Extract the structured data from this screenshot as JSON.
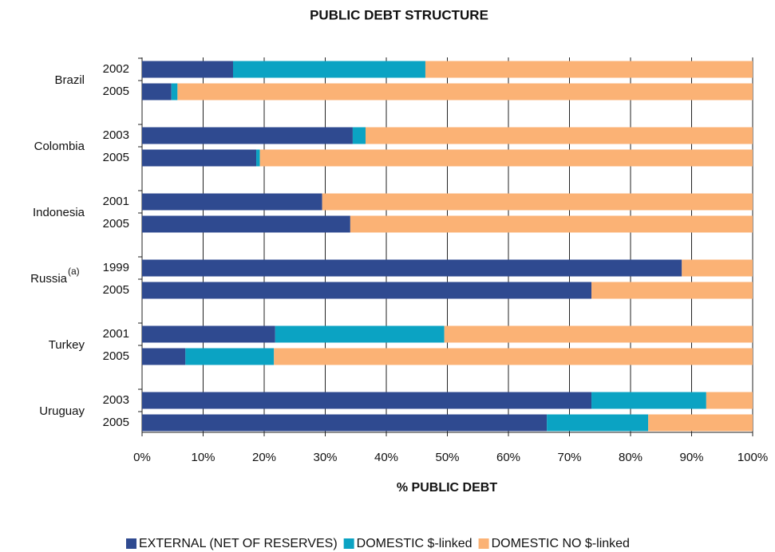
{
  "chart_data": {
    "type": "stacked_barh",
    "title": "PUBLIC DEBT STRUCTURE",
    "x_label": "% PUBLIC DEBT",
    "groups": [
      {
        "label": "Brazil",
        "categories": [
          "2002",
          "2005"
        ]
      },
      {
        "label": "Colombia",
        "categories": [
          "2003",
          "2005"
        ]
      },
      {
        "label": "Indonesia",
        "categories": [
          "2001",
          "2005"
        ]
      },
      {
        "label": "Russia",
        "note": "(a)",
        "categories": [
          "1999",
          "2005"
        ]
      },
      {
        "label": "Turkey",
        "categories": [
          "2001",
          "2005"
        ]
      },
      {
        "label": "Uruguay",
        "categories": [
          "2003",
          "2005"
        ]
      }
    ],
    "series": [
      {
        "name": "EXTERNAL (NET OF RESERVES)",
        "color": "#2f4a90",
        "values": [
          14.9,
          4.8,
          34.5,
          18.7,
          29.5,
          34.1,
          88.4,
          73.6,
          21.8,
          7.1,
          73.6,
          66.3
        ]
      },
      {
        "name": "DOMESTIC $-linked",
        "color": "#0ba3c3",
        "values": [
          31.5,
          1.0,
          2.1,
          0.6,
          0,
          0,
          0,
          0,
          27.7,
          14.5,
          18.8,
          16.6
        ]
      },
      {
        "name": "DOMESTIC NO $-linked",
        "color": "#fbb275",
        "values": [
          53.6,
          94.2,
          63.4,
          80.7,
          70.5,
          65.9,
          11.6,
          26.4,
          50.5,
          78.4,
          7.6,
          17.1
        ]
      }
    ],
    "xlim": [
      0,
      100
    ],
    "xticks": [
      {
        "value": 0,
        "label": "0%"
      },
      {
        "value": 10,
        "label": "10%"
      },
      {
        "value": 20,
        "label": "20%"
      },
      {
        "value": 30,
        "label": "30%"
      },
      {
        "value": 40,
        "label": "40%"
      },
      {
        "value": 50,
        "label": "50%"
      },
      {
        "value": 60,
        "label": "60%"
      },
      {
        "value": 70,
        "label": "70%"
      },
      {
        "value": 80,
        "label": "80%"
      },
      {
        "value": 90,
        "label": "90%"
      },
      {
        "value": 100,
        "label": "100%"
      }
    ],
    "grid": true
  }
}
